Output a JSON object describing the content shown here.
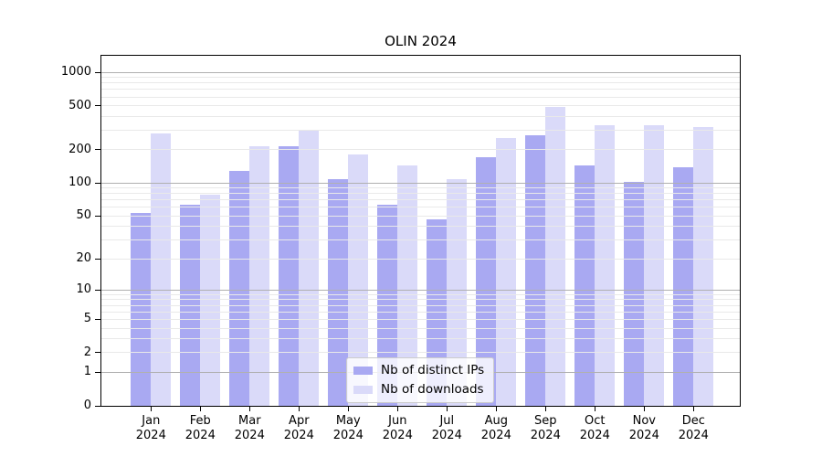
{
  "chart_data": {
    "type": "bar",
    "title": "OLIN 2024",
    "categories": [
      "Jan 2024",
      "Feb 2024",
      "Mar 2024",
      "Apr 2024",
      "May 2024",
      "Jun 2024",
      "Jul 2024",
      "Aug 2024",
      "Sep 2024",
      "Oct 2024",
      "Nov 2024",
      "Dec 2024"
    ],
    "series": [
      {
        "name": "Nb of distinct IPs",
        "color": "#a9a9f2",
        "values": [
          53,
          63,
          128,
          215,
          108,
          64,
          47,
          172,
          269,
          145,
          103,
          140
        ]
      },
      {
        "name": "Nb of downloads",
        "color": "#dadaf9",
        "values": [
          281,
          78,
          215,
          300,
          183,
          144,
          108,
          258,
          486,
          336,
          331,
          322
        ]
      }
    ],
    "xlabel": "",
    "ylabel": "",
    "yscale": "log1p",
    "ylim": [
      0,
      1410
    ],
    "yticks": [
      0,
      1,
      2,
      5,
      10,
      20,
      50,
      100,
      200,
      500,
      1000
    ],
    "grid": {
      "on": true,
      "major_values": [
        1,
        10,
        100,
        1000
      ],
      "minor_values": [
        2,
        3,
        4,
        5,
        6,
        7,
        8,
        9,
        20,
        30,
        40,
        50,
        60,
        70,
        80,
        90,
        200,
        300,
        400,
        500,
        600,
        700,
        800,
        900
      ],
      "major_color": "#b0b0b0",
      "minor_color": "#e9e9e9"
    },
    "legend_position": "lower center"
  }
}
